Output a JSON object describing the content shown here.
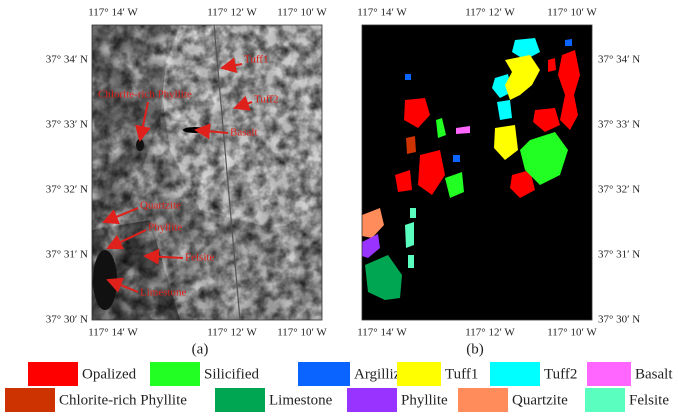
{
  "panels": [
    {
      "caption": "(a)",
      "top_ticks": [
        "117° 14′ W",
        "117° 12′ W",
        "117° 10′ W"
      ],
      "bottom_ticks": [
        "117° 14′ W",
        "117° 12′ W",
        "117° 10′ W"
      ],
      "left_ticks": [
        "37° 34′ N",
        "37° 33′ N",
        "37° 32′ N",
        "37° 31′ N",
        "37° 30′ N"
      ],
      "annotations": [
        "Tuff1",
        "Tuff2",
        "Chlorite-rich Phyllite",
        "Basalt",
        "Quartzite",
        "Phyllite",
        "Felsite",
        "Limestone"
      ]
    },
    {
      "caption": "(b)",
      "top_ticks": [
        "117° 14′ W",
        "117° 12′ W",
        "117° 10′ W"
      ],
      "bottom_ticks": [
        "117° 14′ W",
        "117° 12′ W",
        "117° 10′ W"
      ],
      "right_ticks": [
        "37° 34′ N",
        "37° 33′ N",
        "37° 32′ N",
        "37° 31′ N",
        "37° 30′ N"
      ]
    }
  ],
  "legend": [
    {
      "name": "Opalized",
      "color": "#ff0000"
    },
    {
      "name": "Silicified",
      "color": "#22ff22"
    },
    {
      "name": "Argillized",
      "color": "#0a64ff"
    },
    {
      "name": "Tuff1",
      "color": "#ffff00"
    },
    {
      "name": "Tuff2",
      "color": "#00ffff"
    },
    {
      "name": "Basalt",
      "color": "#ff66ff"
    },
    {
      "name": "Chlorite-rich Phyllite",
      "color": "#cc3300"
    },
    {
      "name": "Limestone",
      "color": "#00a652"
    },
    {
      "name": "Phyllite",
      "color": "#9933ff"
    },
    {
      "name": "Quartzite",
      "color": "#ff8c5a"
    },
    {
      "name": "Felsite",
      "color": "#5affc0"
    }
  ]
}
